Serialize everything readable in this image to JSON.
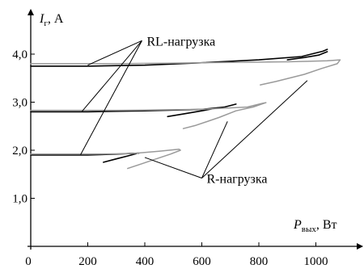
{
  "chart_data": {
    "type": "line",
    "title": "",
    "xlabel": {
      "symbol": "P",
      "subscript": "вых",
      "unit": ", Вт"
    },
    "ylabel": {
      "symbol": "I",
      "subscript": "г",
      "unit": ", А"
    },
    "xlim": [
      0,
      1100
    ],
    "ylim": [
      0,
      4.6
    ],
    "xticks": [
      0,
      200,
      400,
      600,
      800,
      1000
    ],
    "xtick_labels": [
      "0",
      "200",
      "400",
      "600",
      "800",
      "1000"
    ],
    "yticks": [
      1.0,
      2.0,
      3.0,
      4.0
    ],
    "ytick_labels": [
      "1,0",
      "2,0",
      "3,0",
      "4,0"
    ],
    "grid": false,
    "legend": "none",
    "colors": {
      "rl": "#000000",
      "r": "#9a9a9a"
    },
    "series": [
      {
        "group": "rl",
        "points": [
          [
            0,
            3.75
          ],
          [
            200,
            3.75
          ],
          [
            400,
            3.77
          ],
          [
            600,
            3.82
          ],
          [
            800,
            3.88
          ],
          [
            950,
            3.95
          ],
          [
            1025,
            4.06
          ],
          [
            1040,
            4.1
          ]
        ]
      },
      {
        "group": "rl",
        "points": [
          [
            900,
            3.88
          ],
          [
            960,
            3.93
          ],
          [
            1010,
            3.98
          ],
          [
            1040,
            4.05
          ]
        ]
      },
      {
        "group": "r",
        "points": [
          [
            0,
            3.8
          ],
          [
            300,
            3.8
          ],
          [
            600,
            3.82
          ],
          [
            900,
            3.84
          ],
          [
            1040,
            3.86
          ],
          [
            1085,
            3.88
          ],
          [
            1075,
            3.8
          ],
          [
            1020,
            3.7
          ],
          [
            960,
            3.58
          ],
          [
            860,
            3.43
          ],
          [
            805,
            3.36
          ]
        ]
      },
      {
        "group": "rl",
        "points": [
          [
            0,
            2.8
          ],
          [
            200,
            2.8
          ],
          [
            400,
            2.82
          ],
          [
            600,
            2.85
          ],
          [
            680,
            2.9
          ],
          [
            720,
            2.96
          ]
        ]
      },
      {
        "group": "rl",
        "points": [
          [
            480,
            2.7
          ],
          [
            540,
            2.76
          ],
          [
            600,
            2.82
          ],
          [
            655,
            2.88
          ]
        ]
      },
      {
        "group": "r",
        "points": [
          [
            0,
            2.83
          ],
          [
            300,
            2.83
          ],
          [
            600,
            2.85
          ],
          [
            760,
            2.9
          ],
          [
            815,
            2.98
          ],
          [
            825,
            2.99
          ],
          [
            780,
            2.9
          ],
          [
            720,
            2.82
          ],
          [
            660,
            2.68
          ],
          [
            580,
            2.52
          ],
          [
            535,
            2.45
          ]
        ]
      },
      {
        "group": "rl",
        "points": [
          [
            0,
            1.9
          ],
          [
            200,
            1.9
          ],
          [
            300,
            1.92
          ],
          [
            380,
            1.94
          ]
        ]
      },
      {
        "group": "rl",
        "points": [
          [
            255,
            1.75
          ],
          [
            300,
            1.82
          ],
          [
            340,
            1.88
          ],
          [
            370,
            1.93
          ]
        ]
      },
      {
        "group": "r",
        "points": [
          [
            0,
            1.92
          ],
          [
            200,
            1.92
          ],
          [
            350,
            1.93
          ],
          [
            450,
            1.98
          ],
          [
            520,
            2.02
          ],
          [
            525,
            2.0
          ],
          [
            490,
            1.92
          ],
          [
            440,
            1.82
          ],
          [
            390,
            1.72
          ],
          [
            340,
            1.62
          ]
        ]
      }
    ],
    "annotations": [
      {
        "text": "RL-нагрузка",
        "anchor": [
          390,
          4.28
        ],
        "targets": [
          [
            200,
            3.77
          ],
          [
            180,
            2.81
          ],
          [
            175,
            1.91
          ]
        ]
      },
      {
        "text": "R-нагрузка",
        "anchor": [
          600,
          1.42
        ],
        "targets": [
          [
            400,
            1.85
          ],
          [
            690,
            2.6
          ],
          [
            970,
            3.45
          ]
        ]
      }
    ]
  }
}
